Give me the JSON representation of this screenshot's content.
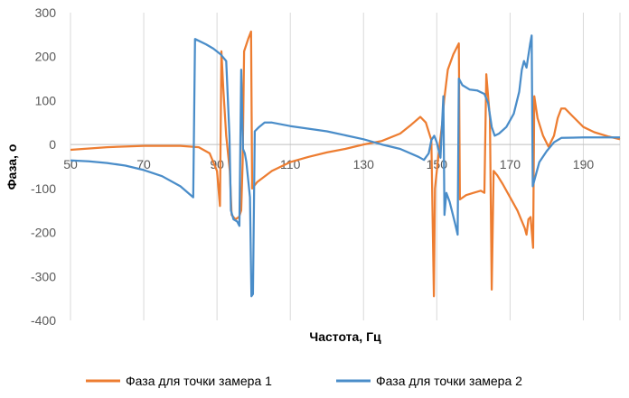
{
  "chart_data": {
    "type": "line",
    "title": "",
    "xlabel": "Частота, Гц",
    "ylabel": "Фаза, о",
    "xlim": [
      50,
      200
    ],
    "ylim": [
      -400,
      300
    ],
    "x_ticks": [
      50,
      70,
      90,
      110,
      130,
      150,
      170,
      190
    ],
    "y_ticks": [
      300,
      200,
      100,
      0,
      -100,
      -200,
      -300,
      -400
    ],
    "x_tick_labels": [
      "50",
      "70",
      "90",
      "110",
      "130",
      "150",
      "170",
      "190"
    ],
    "y_tick_labels": [
      "300",
      "200",
      "100",
      "0",
      "-100",
      "-200",
      "-300",
      "-400"
    ],
    "grid": "vertical",
    "legend_position": "bottom",
    "series": [
      {
        "name": "Фаза для точки замера 1",
        "color": "#ED7D31",
        "points": [
          [
            50,
            -12
          ],
          [
            60,
            -6
          ],
          [
            70,
            -3
          ],
          [
            80,
            -3
          ],
          [
            85,
            -6
          ],
          [
            88,
            -20
          ],
          [
            90,
            -60
          ],
          [
            90.8,
            -140
          ],
          [
            91.2,
            212
          ],
          [
            91.7,
            130
          ],
          [
            92.5,
            20
          ],
          [
            93.5,
            -60
          ],
          [
            94,
            -160
          ],
          [
            95,
            -170
          ],
          [
            96,
            -165
          ],
          [
            96.6,
            -150
          ],
          [
            97,
            -40
          ],
          [
            97.4,
            212
          ],
          [
            98.5,
            240
          ],
          [
            99.3,
            257
          ],
          [
            99.6,
            -100
          ],
          [
            101,
            -85
          ],
          [
            105,
            -60
          ],
          [
            110,
            -40
          ],
          [
            115,
            -28
          ],
          [
            120,
            -18
          ],
          [
            125,
            -10
          ],
          [
            130,
            0
          ],
          [
            135,
            8
          ],
          [
            140,
            25
          ],
          [
            143,
            45
          ],
          [
            145.5,
            63
          ],
          [
            147,
            50
          ],
          [
            148.5,
            10
          ],
          [
            149.2,
            -345
          ],
          [
            149.5,
            -100
          ],
          [
            150.5,
            -20
          ],
          [
            151.5,
            50
          ],
          [
            152,
            100
          ],
          [
            153,
            170
          ],
          [
            154.5,
            205
          ],
          [
            156,
            230
          ],
          [
            156.3,
            -125
          ],
          [
            158,
            -115
          ],
          [
            160,
            -110
          ],
          [
            162,
            -105
          ],
          [
            163,
            -110
          ],
          [
            163.5,
            160
          ],
          [
            164.5,
            60
          ],
          [
            165,
            -330
          ],
          [
            165.5,
            -60
          ],
          [
            166.5,
            -70
          ],
          [
            168,
            -90
          ],
          [
            170,
            -120
          ],
          [
            172,
            -150
          ],
          [
            174,
            -190
          ],
          [
            174.5,
            -205
          ],
          [
            175,
            -170
          ],
          [
            175.6,
            -165
          ],
          [
            176.3,
            -235
          ],
          [
            176.6,
            110
          ],
          [
            177.5,
            60
          ],
          [
            179,
            20
          ],
          [
            180.5,
            -5
          ],
          [
            182,
            20
          ],
          [
            183,
            60
          ],
          [
            184,
            82
          ],
          [
            185,
            82
          ],
          [
            187,
            65
          ],
          [
            190,
            40
          ],
          [
            193,
            28
          ],
          [
            197,
            18
          ],
          [
            200,
            12
          ]
        ]
      },
      {
        "name": "Фаза для точки замера 2",
        "color": "#4A8DC9",
        "points": [
          [
            50,
            -36
          ],
          [
            55,
            -38
          ],
          [
            60,
            -42
          ],
          [
            65,
            -48
          ],
          [
            70,
            -58
          ],
          [
            75,
            -72
          ],
          [
            80,
            -95
          ],
          [
            83.5,
            -120
          ],
          [
            84,
            240
          ],
          [
            87,
            228
          ],
          [
            89,
            218
          ],
          [
            91,
            205
          ],
          [
            92.5,
            190
          ],
          [
            93.4,
            20
          ],
          [
            93.8,
            -150
          ],
          [
            94.5,
            -170
          ],
          [
            95.5,
            -175
          ],
          [
            96.1,
            -185
          ],
          [
            96.6,
            170
          ],
          [
            97.1,
            -10
          ],
          [
            97.6,
            -20
          ],
          [
            98,
            -40
          ],
          [
            99,
            -120
          ],
          [
            99.4,
            -345
          ],
          [
            99.8,
            -340
          ],
          [
            100.3,
            30
          ],
          [
            101.5,
            40
          ],
          [
            103,
            50
          ],
          [
            105,
            50
          ],
          [
            110,
            42
          ],
          [
            120,
            30
          ],
          [
            130,
            12
          ],
          [
            135,
            0
          ],
          [
            140,
            -10
          ],
          [
            145,
            -28
          ],
          [
            146.5,
            -35
          ],
          [
            147.8,
            -20
          ],
          [
            148.5,
            10
          ],
          [
            149.3,
            20
          ],
          [
            150,
            5
          ],
          [
            151,
            -30
          ],
          [
            151.8,
            110
          ],
          [
            152.1,
            -160
          ],
          [
            152.6,
            -110
          ],
          [
            153.5,
            -130
          ],
          [
            155,
            -180
          ],
          [
            155.7,
            -205
          ],
          [
            156,
            150
          ],
          [
            157,
            135
          ],
          [
            159,
            125
          ],
          [
            161,
            123
          ],
          [
            163,
            115
          ],
          [
            164,
            95
          ],
          [
            165,
            40
          ],
          [
            165.8,
            20
          ],
          [
            167,
            25
          ],
          [
            169,
            40
          ],
          [
            171,
            70
          ],
          [
            172.5,
            120
          ],
          [
            173.2,
            170
          ],
          [
            173.8,
            190
          ],
          [
            174.5,
            175
          ],
          [
            175.5,
            230
          ],
          [
            175.9,
            248
          ],
          [
            176.2,
            -95
          ],
          [
            177,
            -70
          ],
          [
            178,
            -40
          ],
          [
            180,
            -15
          ],
          [
            182,
            5
          ],
          [
            184,
            15
          ],
          [
            190,
            16
          ],
          [
            200,
            16
          ]
        ]
      }
    ]
  }
}
